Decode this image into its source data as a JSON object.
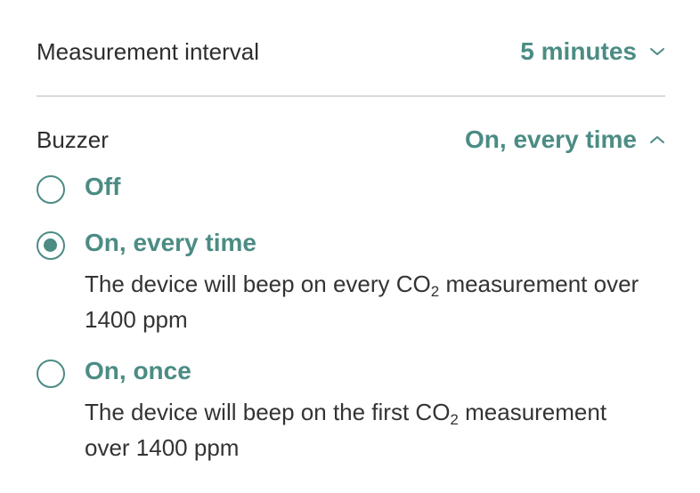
{
  "measurement_interval": {
    "label": "Measurement interval",
    "value": "5 minutes",
    "chevron_icon": "chevron-down-icon"
  },
  "buzzer": {
    "label": "Buzzer",
    "value": "On, every time",
    "chevron_icon": "chevron-up-icon",
    "selected": "On, every time",
    "options": [
      {
        "title": "Off"
      },
      {
        "title": "On, every time",
        "desc_before": "The device will beep on every CO",
        "desc_sub": "2",
        "desc_after": " measurement over 1400 ppm"
      },
      {
        "title": "On, once",
        "desc_before": "The device will beep on the first CO",
        "desc_sub": "2",
        "desc_after": " measurement over 1400 ppm"
      }
    ]
  },
  "colors": {
    "accent": "#4b8c84",
    "text": "#2d2d2d",
    "divider": "#d9d9d9"
  }
}
